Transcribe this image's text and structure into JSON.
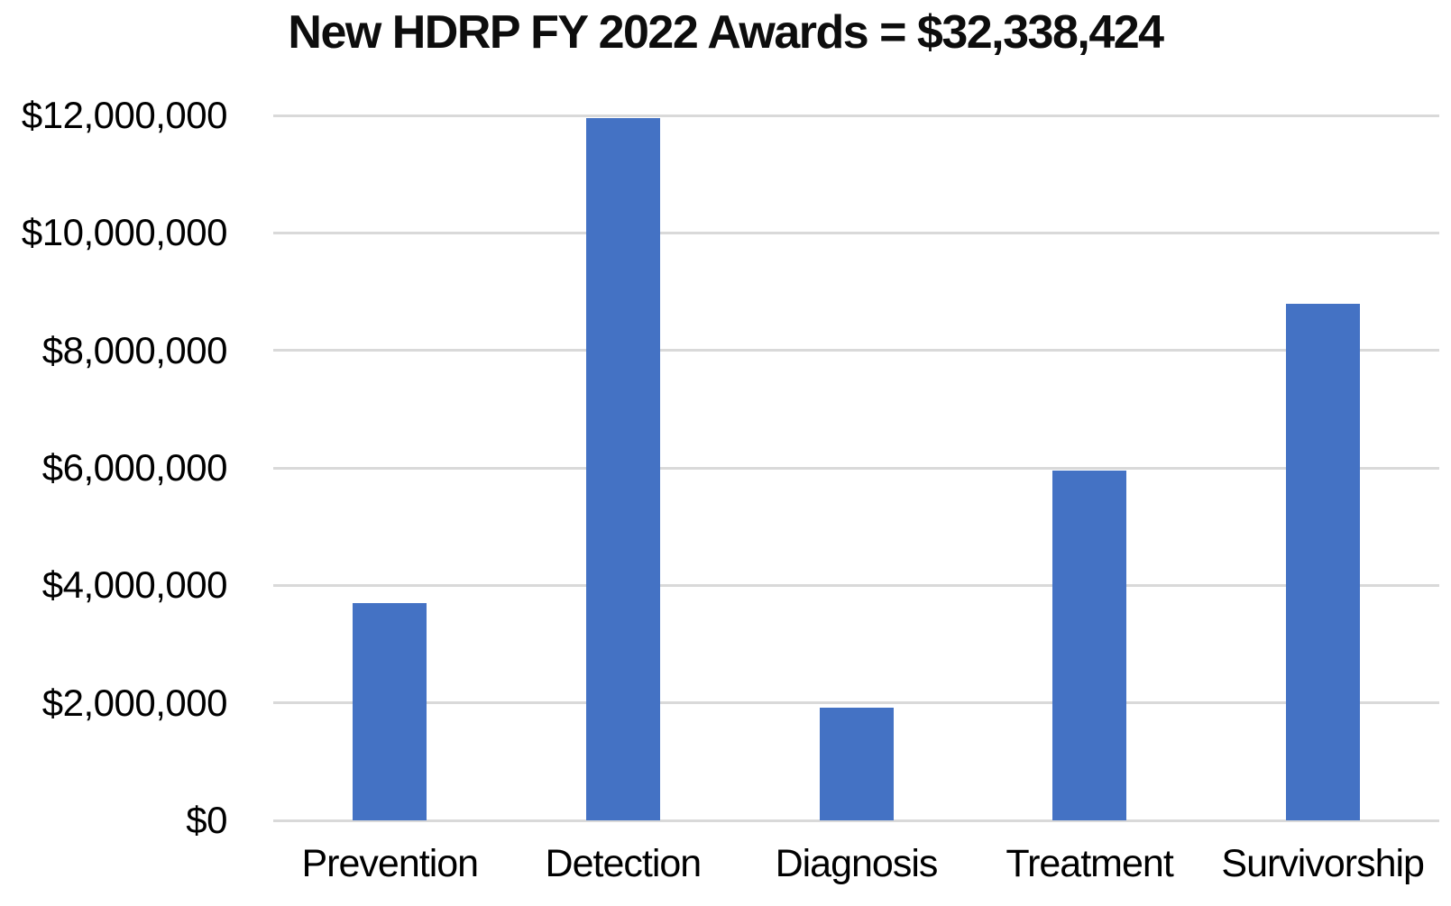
{
  "chart_data": {
    "type": "bar",
    "title": "New HDRP FY 2022 Awards = $32,338,424",
    "xlabel": "",
    "ylabel": "",
    "categories": [
      "Prevention",
      "Detection",
      "Diagnosis",
      "Treatment",
      "Survivorship"
    ],
    "values": [
      3700000,
      11950000,
      1920000,
      5950000,
      8800000
    ],
    "y_ticks": [
      {
        "value": 0,
        "label": "$0"
      },
      {
        "value": 2000000,
        "label": "$2,000,000"
      },
      {
        "value": 4000000,
        "label": "$4,000,000"
      },
      {
        "value": 6000000,
        "label": "$6,000,000"
      },
      {
        "value": 8000000,
        "label": "$8,000,000"
      },
      {
        "value": 10000000,
        "label": "$10,000,000"
      },
      {
        "value": 12000000,
        "label": "$12,000,000"
      }
    ],
    "ylim": [
      0,
      12000000
    ],
    "grid": true,
    "legend_position": "none",
    "bar_color": "#4472C4",
    "gridline_color": "#D9D9D9",
    "text_color": "#000000",
    "background_color": "#FFFFFF"
  }
}
